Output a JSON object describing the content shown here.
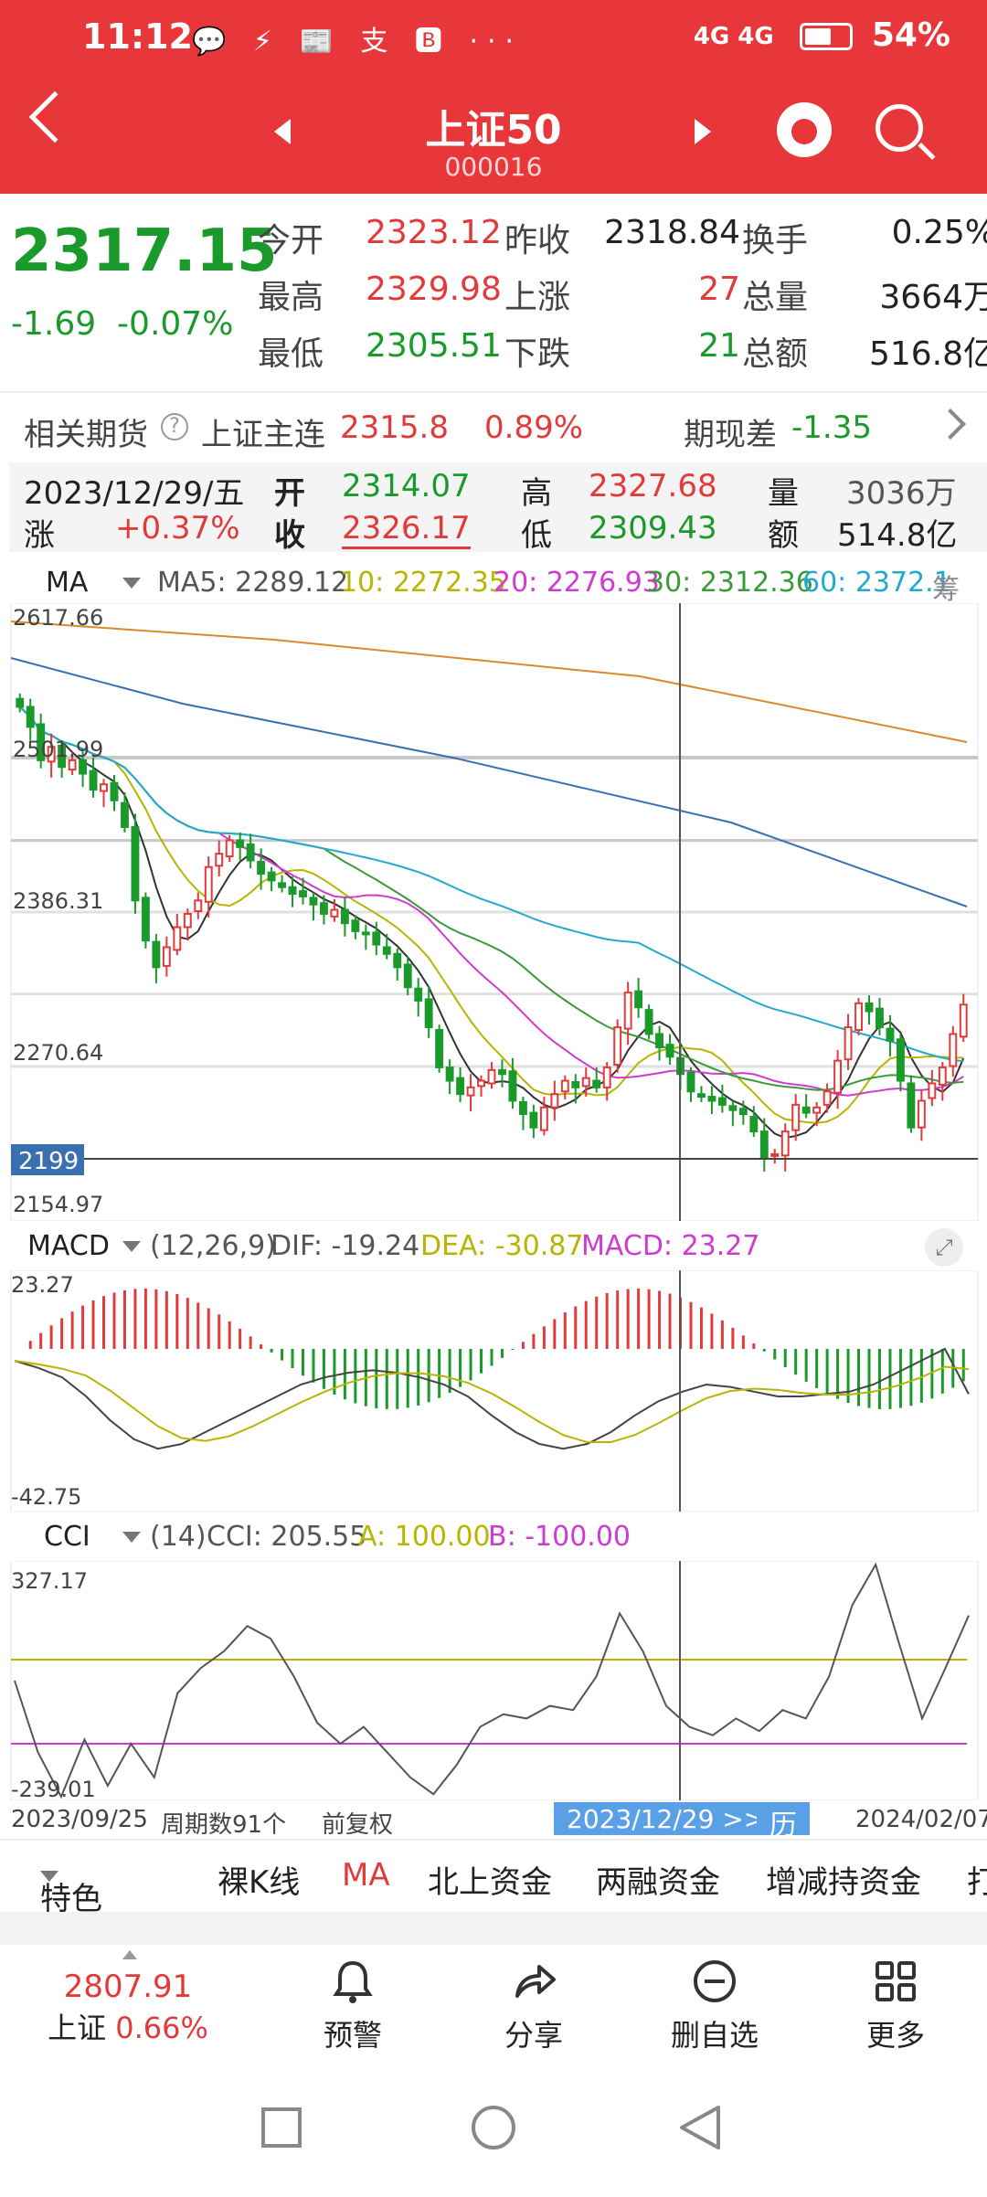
{
  "status_bar": {
    "time": "11:12",
    "notif_icons": "💬 ⚡ 📰 支 🅱 ···",
    "signal": "4G 4G",
    "battery": "54%"
  },
  "header": {
    "title": "上证50",
    "code": "000016"
  },
  "quote": {
    "price": "2317.15",
    "change": "-1.69",
    "change_pct": "-0.07%",
    "rows": [
      [
        {
          "l": "今开",
          "v": "2323.12",
          "c": "red"
        },
        {
          "l": "昨收",
          "v": "2318.84",
          "c": "dark"
        },
        {
          "l": "换手",
          "v": "0.25%",
          "c": "dark"
        }
      ],
      [
        {
          "l": "最高",
          "v": "2329.98",
          "c": "red"
        },
        {
          "l": "上涨",
          "v": "27",
          "c": "red"
        },
        {
          "l": "总量",
          "v": "3664万",
          "c": "dark"
        }
      ],
      [
        {
          "l": "最低",
          "v": "2305.51",
          "c": "green"
        },
        {
          "l": "下跌",
          "v": "21",
          "c": "green"
        },
        {
          "l": "总额",
          "v": "516.8亿",
          "c": "dark"
        }
      ]
    ]
  },
  "futures": {
    "label": "相关期货",
    "q": "?",
    "name": "上证主连",
    "price": "2315.8",
    "pct": "0.89%",
    "basis_label": "期现差",
    "basis": "-1.35"
  },
  "day_info": {
    "date": "2023/12/29/五",
    "open_l": "开",
    "open": "2314.07",
    "high_l": "高",
    "high": "2327.68",
    "vol_l": "量",
    "vol": "3036万",
    "chg_l": "涨",
    "chg": "+0.37%",
    "close_l": "收",
    "close": "2326.17",
    "low_l": "低",
    "low": "2309.43",
    "amt_l": "额",
    "amt": "514.8亿"
  },
  "ma_header": {
    "name": "MA",
    "ma5": "MA5: 2289.12",
    "ma10": "10: 2272.35",
    "ma20": "20: 2276.93",
    "ma30": "30: 2312.36",
    "ma60": "60: 2372.1",
    "extra": "筹"
  },
  "price_axis": {
    "y_top": "2617.66",
    "y2": "2501.99",
    "y3": "2386.31",
    "y4": "2270.64",
    "y_bottom": "2154.97",
    "cursor": "2199"
  },
  "macd_header": {
    "name": "MACD",
    "params": "(12,26,9)",
    "dif": "DIF: -19.24",
    "dea": "DEA: -30.87",
    "macd": "MACD: 23.27",
    "ymax": "23.27",
    "ymin": "-42.75"
  },
  "cci_header": {
    "name": "CCI",
    "params": "(14)",
    "cci": "CCI: 205.55",
    "a": "A: 100.00",
    "b": "B: -100.00",
    "ymax": "327.17",
    "ymin": "-239.01"
  },
  "x_axis": {
    "start": "2023/09/25",
    "period": "周期数91个",
    "adj": "前复权",
    "cursor_date": "2023/12/29 >>",
    "cal": "历",
    "end": "2024/02/07"
  },
  "tabs": [
    "特色",
    "裸K线",
    "MA",
    "北上资金",
    "两融资金",
    "增减持资金",
    "打"
  ],
  "bottom_nav": {
    "index_value": "2807.91",
    "index_name": "上证",
    "index_pct": "0.66%",
    "alert": "预警",
    "share": "分享",
    "remove": "删自选",
    "more": "更多"
  },
  "colors": {
    "header": "#e8373a",
    "up": "#e23a3a",
    "down": "#1a9a2a",
    "ma5": "#333333",
    "ma10": "#b8b400",
    "ma20": "#d03ad0",
    "ma30": "#3a9a3a",
    "ma60": "#22aacc",
    "ma120": "#3a6fb0",
    "ma250": "#d98a2a"
  },
  "chart_data": {
    "type": "candlestick",
    "title": "上证50",
    "ylim": [
      2154.97,
      2617.66
    ],
    "x_start": "2023/09/25",
    "x_end": "2024/02/07",
    "count": 91,
    "closes": [
      2540,
      2525,
      2500,
      2510,
      2495,
      2500,
      2490,
      2478,
      2482,
      2470,
      2450,
      2395,
      2365,
      2345,
      2360,
      2375,
      2385,
      2395,
      2420,
      2430,
      2440,
      2435,
      2425,
      2415,
      2410,
      2405,
      2400,
      2398,
      2392,
      2385,
      2388,
      2378,
      2372,
      2370,
      2362,
      2355,
      2345,
      2330,
      2320,
      2300,
      2270,
      2260,
      2250,
      2255,
      2260,
      2268,
      2265,
      2245,
      2235,
      2225,
      2240,
      2250,
      2260,
      2255,
      2262,
      2255,
      2270,
      2300,
      2326,
      2315,
      2295,
      2285,
      2278,
      2265,
      2252,
      2248,
      2245,
      2242,
      2238,
      2235,
      2222,
      2202,
      2205,
      2222,
      2242,
      2236,
      2240,
      2252,
      2275,
      2300,
      2318,
      2312,
      2300,
      2290,
      2260,
      2225,
      2245,
      2258,
      2270,
      2295,
      2317
    ],
    "macd_dif": [
      -5,
      -8,
      -12,
      -20,
      -30,
      -38,
      -42,
      -40,
      -35,
      -30,
      -25,
      -20,
      -15,
      -12,
      -10,
      -9,
      -10,
      -12,
      -15,
      -20,
      -28,
      -35,
      -40,
      -42,
      -40,
      -35,
      -28,
      -22,
      -18,
      -15,
      -16,
      -18,
      -20,
      -20,
      -19,
      -18,
      -15,
      -10,
      -5,
      0,
      -19
    ],
    "cci": [
      50,
      -120,
      -230,
      -90,
      -200,
      -100,
      -180,
      20,
      80,
      120,
      180,
      150,
      60,
      -50,
      -100,
      -60,
      -120,
      -180,
      -220,
      -150,
      -60,
      -30,
      -40,
      -10,
      -20,
      60,
      210,
      120,
      -10,
      -60,
      -80,
      -40,
      -70,
      -20,
      -40,
      60,
      230,
      327,
      140,
      -40,
      80,
      205
    ]
  }
}
